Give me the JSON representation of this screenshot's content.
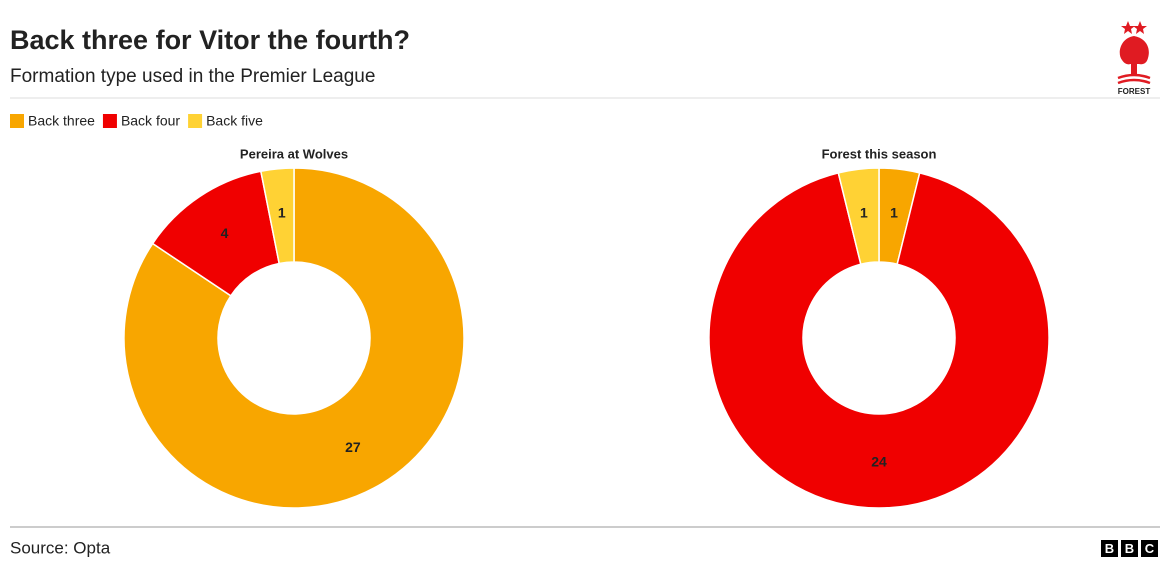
{
  "title": "Back three for Vitor the fourth?",
  "subtitle": "Formation type used in the Premier League",
  "source": "Source: Opta",
  "crest_text": "FOREST",
  "brand": [
    "B",
    "B",
    "C"
  ],
  "chart_data": [
    {
      "type": "pie",
      "donut": true,
      "title": "Pereira at Wolves",
      "categories": [
        "Back three",
        "Back four",
        "Back five"
      ],
      "values": [
        27,
        4,
        1
      ],
      "colors": [
        "#f8a600",
        "#f00000",
        "#ffd234"
      ]
    },
    {
      "type": "pie",
      "donut": true,
      "title": "Forest this season",
      "categories": [
        "Back three",
        "Back four",
        "Back five"
      ],
      "values": [
        1,
        24,
        1
      ],
      "colors": [
        "#f8a600",
        "#f00000",
        "#ffd234"
      ]
    }
  ]
}
